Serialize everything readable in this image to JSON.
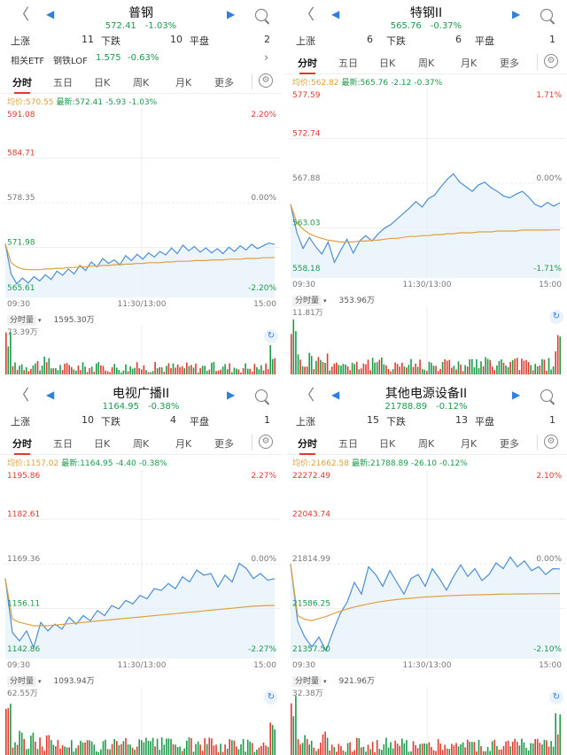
{
  "colors": {
    "up": "#e03a2f",
    "down": "#1c9a4a",
    "price": "#4a8fd6",
    "avg": "#e0a040",
    "tick": "#777",
    "accent": "#2f7fe0"
  },
  "icons": {
    "back": "chevron-left-icon",
    "prev": "triangle-left-icon",
    "next": "triangle-right-icon",
    "search": "search-icon",
    "settings": "gear-icon",
    "more": "chevron-right-icon",
    "refresh": "refresh-icon"
  },
  "panels": [
    {
      "title": "普钢",
      "price": "572.41",
      "pct": "-1.03%",
      "stat": {
        "up_label": "上涨",
        "up": "11",
        "down_label": "下跌",
        "down": "10",
        "flat_label": "平盘",
        "flat": "2"
      },
      "etf": {
        "label": "相关ETF",
        "name": "钢铁LOF",
        "price": "1.575",
        "pct": "-0.63%"
      },
      "tabs": [
        "分时",
        "五日",
        "日K",
        "周K",
        "月K",
        "更多"
      ],
      "avg_line": {
        "avg": "均价:570.55",
        "latest": "最新:572.41",
        "chg": "-5.93",
        "pct": "-1.03%"
      },
      "y_left": [
        "591.08",
        "584.71",
        "578.35",
        "571.98",
        "565.61"
      ],
      "y_right": [
        "2.20%",
        "0.00%",
        "-2.20%"
      ],
      "x_ticks": [
        "09:30",
        "11:30/13:00",
        "15:00"
      ],
      "vol_tab": "分时量",
      "vol_total": "1595.30万",
      "vol_max": "73.39万"
    },
    {
      "title": "特钢II",
      "price": "565.76",
      "pct": "-0.37%",
      "stat": {
        "up_label": "上涨",
        "up": "6",
        "down_label": "下跌",
        "down": "6",
        "flat_label": "平盘",
        "flat": "1"
      },
      "tabs": [
        "分时",
        "五日",
        "日K",
        "周K",
        "月K",
        "更多"
      ],
      "avg_line": {
        "avg": "均价:562.82",
        "latest": "最新:565.76",
        "chg": "-2.12",
        "pct": "-0.37%"
      },
      "y_left": [
        "577.59",
        "572.74",
        "567.88",
        "563.03",
        "558.18"
      ],
      "y_right": [
        "1.71%",
        "0.00%",
        "-1.71%"
      ],
      "x_ticks": [
        "09:30",
        "11:30/13:00",
        "15:00"
      ],
      "vol_tab": "分时量",
      "vol_total": "353.96万",
      "vol_max": "11.81万"
    },
    {
      "title": "电视广播II",
      "price": "1164.95",
      "pct": "-0.38%",
      "stat": {
        "up_label": "上涨",
        "up": "10",
        "down_label": "下跌",
        "down": "4",
        "flat_label": "平盘",
        "flat": "1"
      },
      "tabs": [
        "分时",
        "五日",
        "日K",
        "周K",
        "月K",
        "更多"
      ],
      "avg_line": {
        "avg": "均价:1157.02",
        "latest": "最新:1164.95",
        "chg": "-4.40",
        "pct": "-0.38%"
      },
      "y_left": [
        "1195.86",
        "1182.61",
        "1169.36",
        "1156.11",
        "1142.86"
      ],
      "y_right": [
        "2.27%",
        "0.00%",
        "-2.27%"
      ],
      "x_ticks": [
        "09:30",
        "11:30/13:00",
        "15:00"
      ],
      "vol_tab": "分时量",
      "vol_total": "1093.94万",
      "vol_max": "62.55万"
    },
    {
      "title": "其他电源设备II",
      "price": "21788.89",
      "pct": "-0.12%",
      "stat": {
        "up_label": "上涨",
        "up": "15",
        "down_label": "下跌",
        "down": "13",
        "flat_label": "平盘",
        "flat": "1"
      },
      "tabs": [
        "分时",
        "五日",
        "日K",
        "周K",
        "月K",
        "更多"
      ],
      "avg_line": {
        "avg": "均价:21662.58",
        "latest": "最新:21788.89",
        "chg": "-26.10",
        "pct": "-0.12%"
      },
      "y_left": [
        "22272.49",
        "22043.74",
        "21814.99",
        "21586.25",
        "21357.50"
      ],
      "y_right": [
        "2.10%",
        "0.00%",
        "-2.10%"
      ],
      "x_ticks": [
        "09:30",
        "11:30/13:00",
        "15:00"
      ],
      "vol_tab": "分时量",
      "vol_total": "921.96万",
      "vol_max": "32.38万"
    }
  ],
  "chart_data": [
    {
      "type": "line",
      "title": "普钢",
      "y_range": [
        565.61,
        591.08
      ],
      "series": [
        {
          "values": [
            572.5,
            568.2,
            566.8,
            567.6,
            566.9,
            567.8,
            567.2,
            568.1,
            567.4,
            568.6,
            568.0,
            568.9,
            568.2,
            569.4,
            568.7,
            569.9,
            569.2,
            570.4,
            569.7,
            570.2,
            569.5,
            570.8,
            570.1,
            571.0,
            570.3,
            571.2,
            570.6,
            571.4,
            570.9,
            571.9,
            571.1,
            572.3,
            571.5,
            572.1,
            571.3,
            571.9,
            571.2,
            571.8,
            571.1,
            572.0,
            571.4,
            572.2,
            571.6,
            572.4,
            571.8,
            572.2,
            572.6,
            572.41
          ]
        },
        {
          "values": [
            572.5,
            569.8,
            569.2,
            568.9,
            568.8,
            568.8,
            568.8,
            568.9,
            568.9,
            569.0,
            569.0,
            569.1,
            569.1,
            569.2,
            569.2,
            569.3,
            569.3,
            569.4,
            569.4,
            569.5,
            569.5,
            569.6,
            569.6,
            569.7,
            569.7,
            569.8,
            569.8,
            569.8,
            569.9,
            569.9,
            570.0,
            570.0,
            570.0,
            570.1,
            570.1,
            570.1,
            570.2,
            570.2,
            570.2,
            570.3,
            570.3,
            570.3,
            570.4,
            570.4,
            570.4,
            570.5,
            570.5,
            570.55
          ]
        }
      ]
    },
    {
      "type": "line",
      "title": "特钢II",
      "y_range": [
        558.18,
        577.59
      ],
      "series": [
        {
          "values": [
            565.6,
            562.5,
            560.8,
            562.0,
            561.0,
            560.2,
            561.5,
            559.3,
            560.6,
            561.8,
            560.3,
            561.6,
            562.2,
            561.6,
            562.4,
            563.0,
            563.4,
            564.0,
            564.6,
            565.2,
            565.9,
            565.3,
            566.2,
            566.6,
            567.5,
            568.3,
            568.9,
            568.0,
            567.5,
            567.0,
            567.7,
            568.0,
            567.4,
            567.0,
            566.5,
            566.3,
            566.7,
            567.0,
            566.4,
            565.6,
            565.3,
            565.8,
            565.4,
            565.76
          ]
        },
        {
          "values": [
            565.6,
            563.6,
            562.9,
            562.4,
            562.1,
            561.9,
            561.7,
            561.6,
            561.5,
            561.5,
            561.5,
            561.6,
            561.6,
            561.7,
            561.7,
            561.8,
            561.9,
            561.9,
            562.0,
            562.1,
            562.1,
            562.2,
            562.2,
            562.3,
            562.3,
            562.4,
            562.4,
            562.5,
            562.5,
            562.5,
            562.6,
            562.6,
            562.6,
            562.7,
            562.7,
            562.7,
            562.7,
            562.8,
            562.8,
            562.8,
            562.8,
            562.8,
            562.82,
            562.82
          ]
        }
      ]
    },
    {
      "type": "line",
      "title": "电视广播II",
      "y_range": [
        1142.86,
        1195.86
      ],
      "series": [
        {
          "values": [
            1165.0,
            1149.0,
            1146.5,
            1149.5,
            1144.5,
            1152.0,
            1149.5,
            1151.5,
            1150.0,
            1153.5,
            1151.5,
            1154.0,
            1152.5,
            1155.5,
            1154.0,
            1157.0,
            1156.0,
            1158.5,
            1157.5,
            1160.0,
            1159.0,
            1162.0,
            1161.5,
            1163.5,
            1162.0,
            1165.5,
            1164.0,
            1167.5,
            1166.0,
            1166.5,
            1162.5,
            1166.0,
            1164.0,
            1169.5,
            1168.0,
            1165.0,
            1166.5,
            1164.5,
            1164.95
          ]
        },
        {
          "values": [
            1165.0,
            1153.0,
            1152.0,
            1151.5,
            1151.0,
            1151.0,
            1151.0,
            1151.2,
            1151.4,
            1151.6,
            1151.8,
            1152.0,
            1152.2,
            1152.4,
            1152.6,
            1152.8,
            1153.0,
            1153.2,
            1153.4,
            1153.6,
            1153.8,
            1154.0,
            1154.2,
            1154.4,
            1154.6,
            1154.8,
            1155.0,
            1155.2,
            1155.4,
            1155.6,
            1155.8,
            1156.0,
            1156.2,
            1156.4,
            1156.6,
            1156.8,
            1156.9,
            1157.0,
            1157.02
          ]
        }
      ]
    },
    {
      "type": "line",
      "title": "其他电源设备II",
      "y_range": [
        21357.5,
        22272.49
      ],
      "series": [
        {
          "values": [
            21815,
            21520,
            21440,
            21390,
            21440,
            21370,
            21470,
            21560,
            21620,
            21720,
            21660,
            21800,
            21760,
            21700,
            21780,
            21720,
            21660,
            21740,
            21760,
            21700,
            21790,
            21740,
            21680,
            21750,
            21810,
            21750,
            21790,
            21730,
            21760,
            21820,
            21790,
            21850,
            21800,
            21830,
            21780,
            21800,
            21760,
            21790,
            21788.89
          ]
        },
        {
          "values": [
            21815,
            21550,
            21530,
            21525,
            21535,
            21545,
            21560,
            21572,
            21584,
            21594,
            21602,
            21610,
            21617,
            21623,
            21628,
            21632,
            21636,
            21639,
            21642,
            21645,
            21647,
            21649,
            21651,
            21653,
            21654,
            21655,
            21656,
            21657,
            21658,
            21659,
            21660,
            21660,
            21661,
            21661,
            21662,
            21662,
            21662,
            21662.5,
            21662.58
          ]
        }
      ]
    }
  ]
}
